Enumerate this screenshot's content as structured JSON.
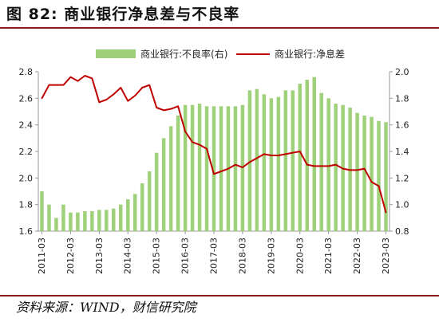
{
  "header": {
    "figure_label": "图 82:",
    "title": "商业银行净息差与不良率"
  },
  "footer": {
    "source": "资料来源：WIND，财信研究院"
  },
  "colors": {
    "bar": "#9fd07a",
    "line": "#c00000",
    "rule": "#8b1a1a",
    "axis": "#999999"
  },
  "chart_data": {
    "type": "bar+line",
    "x_tick_labels": [
      "2011-03",
      "2012-03",
      "2013-03",
      "2014-03",
      "2015-03",
      "2016-03",
      "2017-03",
      "2018-03",
      "2019-03",
      "2020-03",
      "2021-03",
      "2022-03",
      "2023-03"
    ],
    "quarters": [
      "2011-03",
      "2011-06",
      "2011-09",
      "2011-12",
      "2012-03",
      "2012-06",
      "2012-09",
      "2012-12",
      "2013-03",
      "2013-06",
      "2013-09",
      "2013-12",
      "2014-03",
      "2014-06",
      "2014-09",
      "2014-12",
      "2015-03",
      "2015-06",
      "2015-09",
      "2015-12",
      "2016-03",
      "2016-06",
      "2016-09",
      "2016-12",
      "2017-03",
      "2017-06",
      "2017-09",
      "2017-12",
      "2018-03",
      "2018-06",
      "2018-09",
      "2018-12",
      "2019-03",
      "2019-06",
      "2019-09",
      "2019-12",
      "2020-03",
      "2020-06",
      "2020-09",
      "2020-12",
      "2021-03",
      "2021-06",
      "2021-09",
      "2021-12",
      "2022-03",
      "2022-06",
      "2022-09",
      "2022-12",
      "2023-03"
    ],
    "series": [
      {
        "name": "商业银行:不良率(右)",
        "type": "bar",
        "axis": "right",
        "values": [
          1.1,
          1.0,
          0.9,
          1.0,
          0.94,
          0.94,
          0.95,
          0.95,
          0.96,
          0.96,
          0.97,
          1.0,
          1.04,
          1.08,
          1.16,
          1.25,
          1.39,
          1.5,
          1.59,
          1.67,
          1.75,
          1.75,
          1.76,
          1.74,
          1.74,
          1.74,
          1.74,
          1.74,
          1.75,
          1.86,
          1.87,
          1.83,
          1.8,
          1.81,
          1.86,
          1.86,
          1.91,
          1.94,
          1.96,
          1.84,
          1.8,
          1.76,
          1.75,
          1.73,
          1.69,
          1.67,
          1.66,
          1.63,
          1.62
        ]
      },
      {
        "name": "商业银行:净息差",
        "type": "line",
        "axis": "left",
        "values": [
          2.6,
          2.7,
          2.7,
          2.7,
          2.76,
          2.73,
          2.77,
          2.75,
          2.57,
          2.59,
          2.63,
          2.68,
          2.58,
          2.62,
          2.68,
          2.7,
          2.53,
          2.51,
          2.52,
          2.54,
          2.35,
          2.27,
          2.25,
          2.22,
          2.03,
          2.05,
          2.07,
          2.1,
          2.08,
          2.12,
          2.15,
          2.18,
          2.17,
          2.17,
          2.18,
          2.19,
          2.2,
          2.1,
          2.09,
          2.09,
          2.09,
          2.1,
          2.07,
          2.06,
          2.06,
          2.07,
          1.97,
          1.94,
          1.74
        ]
      }
    ],
    "y_left": {
      "range": [
        1.6,
        2.8
      ],
      "ticks": [
        "1.6",
        "1.8",
        "2.0",
        "2.2",
        "2.4",
        "2.6",
        "2.8"
      ]
    },
    "y_right": {
      "range": [
        0.8,
        2.0
      ],
      "ticks": [
        "0.8",
        "1.0",
        "1.2",
        "1.4",
        "1.6",
        "1.8",
        "2.0"
      ]
    },
    "legend_position": "top",
    "grid": false
  }
}
